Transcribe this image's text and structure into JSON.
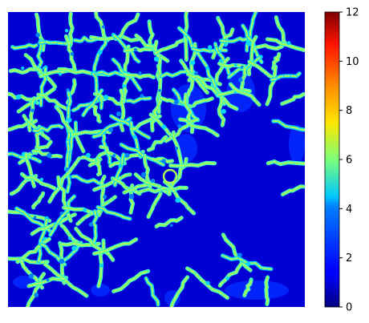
{
  "chart_data": {
    "type": "heatmap",
    "title": "",
    "xlabel": "",
    "ylabel": "",
    "axes_visible": false,
    "colormap": "jet",
    "background_value": 1,
    "membrane_values": [
      2,
      3,
      4,
      5,
      6,
      7
    ],
    "colorbar": {
      "position": "right",
      "vmin": 0,
      "vmax": 12,
      "ticks": [
        0,
        2,
        4,
        6,
        8,
        10,
        12
      ],
      "tick_labels": [
        "0",
        "2",
        "4",
        "6",
        "8",
        "10",
        "12"
      ]
    }
  }
}
